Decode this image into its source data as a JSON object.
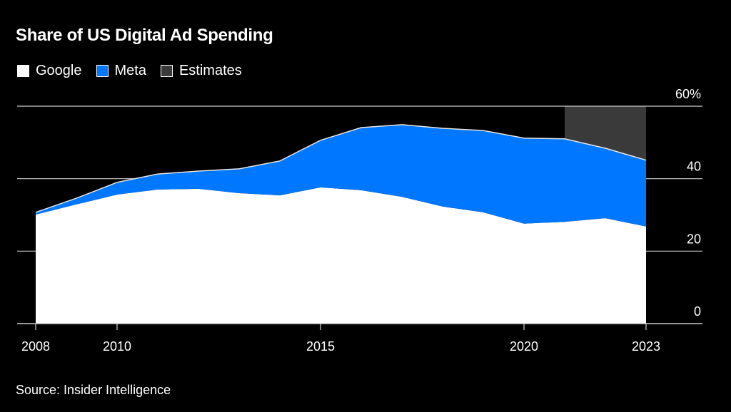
{
  "title": "Share of US Digital Ad Spending",
  "legend": [
    {
      "label": "Google",
      "color": "#ffffff"
    },
    {
      "label": "Meta",
      "color": "#0077ff"
    },
    {
      "label": "Estimates",
      "color": "#3a3a3a"
    }
  ],
  "source": "Source: Insider Intelligence",
  "chart_data": {
    "type": "area",
    "stacked": true,
    "title": "Share of US Digital Ad Spending",
    "xlabel": "",
    "ylabel": "",
    "x": [
      2008,
      2009,
      2010,
      2011,
      2012,
      2013,
      2014,
      2015,
      2016,
      2017,
      2018,
      2019,
      2020,
      2021,
      2022,
      2023
    ],
    "series": [
      {
        "name": "Google",
        "color": "#ffffff",
        "values": [
          30.1,
          32.9,
          35.6,
          37.0,
          37.2,
          36.0,
          35.4,
          37.6,
          36.8,
          35.0,
          32.3,
          30.7,
          27.6,
          28.1,
          29.1,
          26.8
        ]
      },
      {
        "name": "Meta",
        "color": "#0077ff",
        "values": [
          0.6,
          1.7,
          3.4,
          4.3,
          4.9,
          6.7,
          9.5,
          13.0,
          17.3,
          19.9,
          21.6,
          22.6,
          23.6,
          22.9,
          19.3,
          18.3
        ]
      }
    ],
    "estimates": {
      "label": "Estimates",
      "from": 2021,
      "to": 2023,
      "color": "#3a3a3a"
    },
    "xlim": [
      2008,
      2023
    ],
    "ylim": [
      0,
      60
    ],
    "x_ticks": [
      2008,
      2010,
      2015,
      2020,
      2023
    ],
    "x_tick_labels": [
      "2008",
      "2010",
      "2015",
      "2020",
      "2023"
    ],
    "y_ticks": [
      0,
      20,
      40,
      60
    ],
    "y_tick_labels": [
      "0",
      "20",
      "40",
      "60%"
    ],
    "y_axis_side": "right",
    "grid": true,
    "legend_position": "top-left"
  }
}
